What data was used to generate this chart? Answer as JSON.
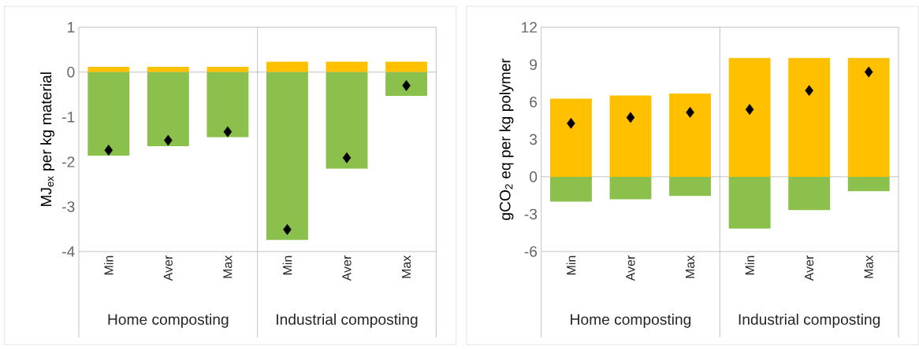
{
  "chart_data": [
    {
      "type": "bar",
      "stacked": true,
      "ylabel": "MJ$_{ex}$ per kg material",
      "categories": [
        "Min",
        "Aver",
        "Max",
        "Min",
        "Aver",
        "Max"
      ],
      "annotations": [
        "Home composting",
        "Industrial composting"
      ],
      "ylim": [
        -4,
        1
      ],
      "yticks": [
        -4,
        -3,
        -2,
        -1,
        0,
        1
      ],
      "series": [
        {
          "type": "bar",
          "color": "#ffc000",
          "values": [
            0.12,
            0.12,
            0.12,
            0.23,
            0.23,
            0.23
          ]
        },
        {
          "type": "bar",
          "color": "#8cc04c",
          "values": [
            -1.86,
            -1.65,
            -1.45,
            -3.74,
            -2.15,
            -0.53
          ]
        },
        {
          "type": "scatter",
          "color": "#000000",
          "marker": "diamond",
          "values": [
            -1.74,
            -1.52,
            -1.33,
            -3.51,
            -1.91,
            -0.3
          ]
        }
      ]
    },
    {
      "type": "bar",
      "stacked": true,
      "ylabel": "gCO$_{2}$ eq per kg polymer",
      "categories": [
        "Min",
        "Aver",
        "Max",
        "Min",
        "Aver",
        "Max"
      ],
      "annotations": [
        "Home composting",
        "Industrial composting"
      ],
      "ylim": [
        -6,
        12
      ],
      "yticks": [
        -6,
        -3,
        0,
        3,
        6,
        9,
        12
      ],
      "series": [
        {
          "type": "bar",
          "color": "#ffc000",
          "values": [
            6.27,
            6.53,
            6.68,
            9.54,
            9.54,
            9.54
          ]
        },
        {
          "type": "bar",
          "color": "#8cc04c",
          "values": [
            -2.0,
            -1.8,
            -1.54,
            -4.16,
            -2.67,
            -1.16
          ]
        },
        {
          "type": "scatter",
          "color": "#000000",
          "marker": "diamond",
          "values": [
            4.29,
            4.76,
            5.17,
            5.4,
            6.92,
            8.41
          ]
        }
      ]
    }
  ]
}
